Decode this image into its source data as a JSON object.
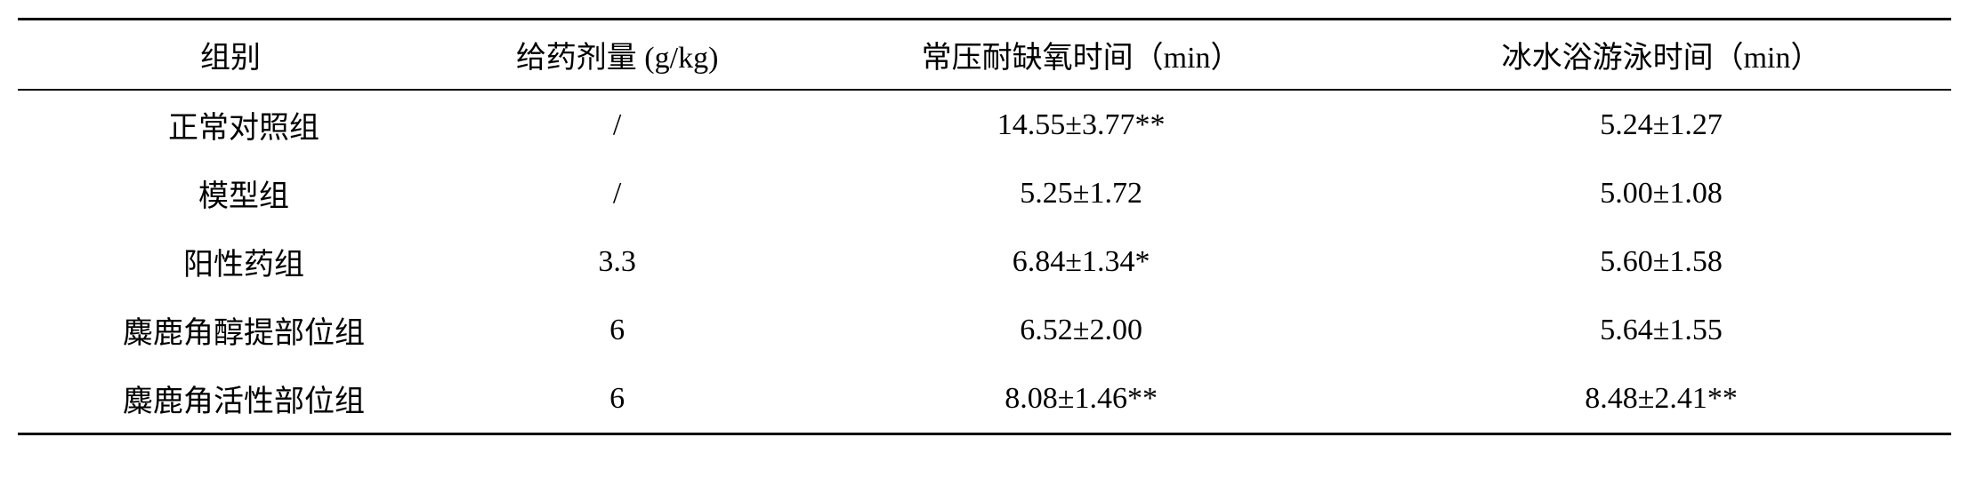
{
  "table": {
    "columns": [
      {
        "key": "group",
        "label": "组别"
      },
      {
        "key": "dose",
        "label": "给药剂量 (g/kg)"
      },
      {
        "key": "hypoxia",
        "label": "常压耐缺氧时间（min）"
      },
      {
        "key": "swim",
        "label": "冰水浴游泳时间（min）"
      }
    ],
    "rows": [
      {
        "group": "正常对照组",
        "dose": "/",
        "hypoxia": "14.55±3.77**",
        "swim": "5.24±1.27"
      },
      {
        "group": "模型组",
        "dose": "/",
        "hypoxia": "5.25±1.72",
        "swim": "5.00±1.08"
      },
      {
        "group": "阳性药组",
        "dose": "3.3",
        "hypoxia": "6.84±1.34*",
        "swim": "5.60±1.58"
      },
      {
        "group": "麋鹿角醇提部位组",
        "dose": "6",
        "hypoxia": "6.52±2.00",
        "swim": "5.64±1.55"
      },
      {
        "group": "麋鹿角活性部位组",
        "dose": "6",
        "hypoxia": "8.08±1.46**",
        "swim": "8.48±2.41**"
      }
    ],
    "style": {
      "border_color": "#000000",
      "top_border_width": 3,
      "header_border_width": 2,
      "bottom_border_width": 3,
      "font_family": "SimSun",
      "header_fontsize": 34,
      "cell_fontsize": 34,
      "background_color": "#ffffff",
      "text_color": "#000000",
      "column_widths_pct": [
        22,
        18,
        30,
        30
      ],
      "column_align": [
        "center",
        "center",
        "center",
        "center"
      ]
    }
  }
}
